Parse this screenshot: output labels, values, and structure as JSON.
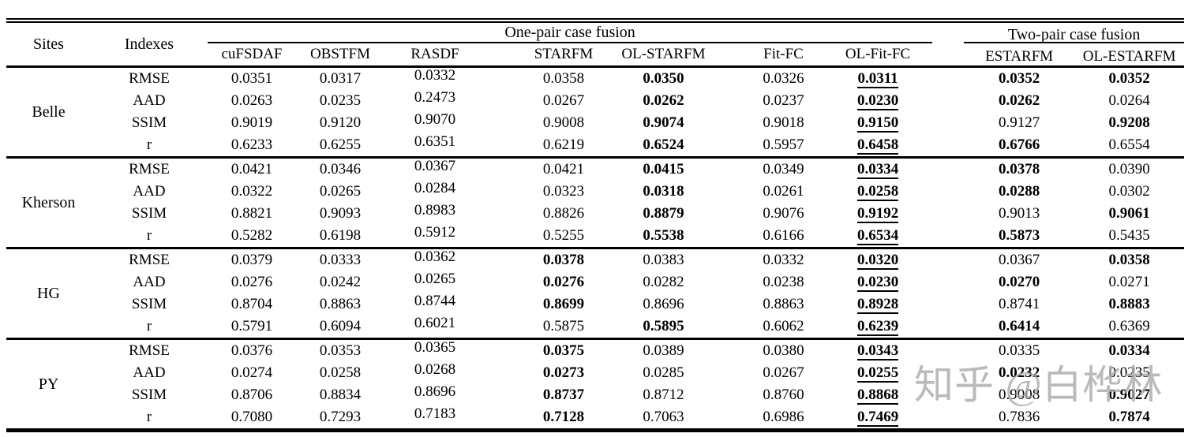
{
  "watermark": {
    "text": "知乎 @白桦林"
  },
  "table": {
    "col_headers": {
      "sites": "Sites",
      "indexes": "Indexes",
      "group_one": "One-pair case fusion",
      "group_two": "Two-pair case fusion",
      "methods_one": [
        "cuFSDAF",
        "OBSTFM",
        "RASDF",
        "STARFM",
        "OL-STARFM",
        "Fit-FC",
        "OL-Fit-FC"
      ],
      "methods_two": [
        "ESTARFM",
        "OL-ESTARFM"
      ]
    },
    "sites": [
      {
        "name": "Belle",
        "rows": [
          {
            "index": "RMSE",
            "values": [
              {
                "v": "0.0351"
              },
              {
                "v": "0.0317"
              },
              {
                "v": "0.0332"
              },
              {
                "v": "0.0358"
              },
              {
                "v": "0.0350",
                "b": true
              },
              {
                "v": "0.0326"
              },
              {
                "v": "0.0311",
                "b": true,
                "u": true
              },
              {
                "v": "0.0352",
                "b": true
              },
              {
                "v": "0.0352",
                "b": true
              }
            ]
          },
          {
            "index": "AAD",
            "values": [
              {
                "v": "0.0263"
              },
              {
                "v": "0.0235"
              },
              {
                "v": "0.2473"
              },
              {
                "v": "0.0267"
              },
              {
                "v": "0.0262",
                "b": true
              },
              {
                "v": "0.0237"
              },
              {
                "v": "0.0230",
                "b": true,
                "u": true
              },
              {
                "v": "0.0262",
                "b": true
              },
              {
                "v": "0.0264"
              }
            ]
          },
          {
            "index": "SSIM",
            "values": [
              {
                "v": "0.9019"
              },
              {
                "v": "0.9120"
              },
              {
                "v": "0.9070"
              },
              {
                "v": "0.9008"
              },
              {
                "v": "0.9074",
                "b": true
              },
              {
                "v": "0.9018"
              },
              {
                "v": "0.9150",
                "b": true,
                "u": true
              },
              {
                "v": "0.9127"
              },
              {
                "v": "0.9208",
                "b": true
              }
            ]
          },
          {
            "index": "r",
            "values": [
              {
                "v": "0.6233"
              },
              {
                "v": "0.6255"
              },
              {
                "v": "0.6351"
              },
              {
                "v": "0.6219"
              },
              {
                "v": "0.6524",
                "b": true
              },
              {
                "v": "0.5957"
              },
              {
                "v": "0.6458",
                "b": true,
                "u": true
              },
              {
                "v": "0.6766",
                "b": true
              },
              {
                "v": "0.6554"
              }
            ]
          }
        ]
      },
      {
        "name": "Kherson",
        "rows": [
          {
            "index": "RMSE",
            "values": [
              {
                "v": "0.0421"
              },
              {
                "v": "0.0346"
              },
              {
                "v": "0.0367"
              },
              {
                "v": "0.0421"
              },
              {
                "v": "0.0415",
                "b": true
              },
              {
                "v": "0.0349"
              },
              {
                "v": "0.0334",
                "b": true,
                "u": true
              },
              {
                "v": "0.0378",
                "b": true
              },
              {
                "v": "0.0390"
              }
            ]
          },
          {
            "index": "AAD",
            "values": [
              {
                "v": "0.0322"
              },
              {
                "v": "0.0265"
              },
              {
                "v": "0.0284"
              },
              {
                "v": "0.0323"
              },
              {
                "v": "0.0318",
                "b": true
              },
              {
                "v": "0.0261"
              },
              {
                "v": "0.0258",
                "b": true,
                "u": true
              },
              {
                "v": "0.0288",
                "b": true
              },
              {
                "v": "0.0302"
              }
            ]
          },
          {
            "index": "SSIM",
            "values": [
              {
                "v": "0.8821"
              },
              {
                "v": "0.9093"
              },
              {
                "v": "0.8983"
              },
              {
                "v": "0.8826"
              },
              {
                "v": "0.8879",
                "b": true
              },
              {
                "v": "0.9076"
              },
              {
                "v": "0.9192",
                "b": true,
                "u": true
              },
              {
                "v": "0.9013"
              },
              {
                "v": "0.9061",
                "b": true
              }
            ]
          },
          {
            "index": "r",
            "values": [
              {
                "v": "0.5282"
              },
              {
                "v": "0.6198"
              },
              {
                "v": "0.5912"
              },
              {
                "v": "0.5255"
              },
              {
                "v": "0.5538",
                "b": true
              },
              {
                "v": "0.6166"
              },
              {
                "v": "0.6534",
                "b": true,
                "u": true
              },
              {
                "v": "0.5873",
                "b": true
              },
              {
                "v": "0.5435"
              }
            ]
          }
        ]
      },
      {
        "name": "HG",
        "rows": [
          {
            "index": "RMSE",
            "values": [
              {
                "v": "0.0379"
              },
              {
                "v": "0.0333"
              },
              {
                "v": "0.0362"
              },
              {
                "v": "0.0378",
                "b": true
              },
              {
                "v": "0.0383"
              },
              {
                "v": "0.0332"
              },
              {
                "v": "0.0320",
                "b": true,
                "u": true
              },
              {
                "v": "0.0367"
              },
              {
                "v": "0.0358",
                "b": true
              }
            ]
          },
          {
            "index": "AAD",
            "values": [
              {
                "v": "0.0276"
              },
              {
                "v": "0.0242"
              },
              {
                "v": "0.0265"
              },
              {
                "v": "0.0276",
                "b": true
              },
              {
                "v": "0.0282"
              },
              {
                "v": "0.0238"
              },
              {
                "v": "0.0230",
                "b": true,
                "u": true
              },
              {
                "v": "0.0270",
                "b": true
              },
              {
                "v": "0.0271"
              }
            ]
          },
          {
            "index": "SSIM",
            "values": [
              {
                "v": "0.8704"
              },
              {
                "v": "0.8863"
              },
              {
                "v": "0.8744"
              },
              {
                "v": "0.8699",
                "b": true
              },
              {
                "v": "0.8696"
              },
              {
                "v": "0.8863"
              },
              {
                "v": "0.8928",
                "b": true,
                "u": true
              },
              {
                "v": "0.8741"
              },
              {
                "v": "0.8883",
                "b": true
              }
            ]
          },
          {
            "index": "r",
            "values": [
              {
                "v": "0.5791"
              },
              {
                "v": "0.6094"
              },
              {
                "v": "0.6021"
              },
              {
                "v": "0.5875"
              },
              {
                "v": "0.5895",
                "b": true
              },
              {
                "v": "0.6062"
              },
              {
                "v": "0.6239",
                "b": true,
                "u": true
              },
              {
                "v": "0.6414",
                "b": true
              },
              {
                "v": "0.6369"
              }
            ]
          }
        ]
      },
      {
        "name": "PY",
        "rows": [
          {
            "index": "RMSE",
            "values": [
              {
                "v": "0.0376"
              },
              {
                "v": "0.0353"
              },
              {
                "v": "0.0365"
              },
              {
                "v": "0.0375",
                "b": true
              },
              {
                "v": "0.0389"
              },
              {
                "v": "0.0380"
              },
              {
                "v": "0.0343",
                "b": true,
                "u": true
              },
              {
                "v": "0.0335"
              },
              {
                "v": "0.0334",
                "b": true
              }
            ]
          },
          {
            "index": "AAD",
            "values": [
              {
                "v": "0.0274"
              },
              {
                "v": "0.0258"
              },
              {
                "v": "0.0268"
              },
              {
                "v": "0.0273",
                "b": true
              },
              {
                "v": "0.0285"
              },
              {
                "v": "0.0267"
              },
              {
                "v": "0.0255",
                "b": true,
                "u": true
              },
              {
                "v": "0.0232",
                "b": true
              },
              {
                "v": "0.0235"
              }
            ]
          },
          {
            "index": "SSIM",
            "values": [
              {
                "v": "0.8706"
              },
              {
                "v": "0.8834"
              },
              {
                "v": "0.8696"
              },
              {
                "v": "0.8737",
                "b": true
              },
              {
                "v": "0.8712"
              },
              {
                "v": "0.8760"
              },
              {
                "v": "0.8868",
                "b": true,
                "u": true
              },
              {
                "v": "0.9008"
              },
              {
                "v": "0.9027",
                "b": true
              }
            ]
          },
          {
            "index": "r",
            "values": [
              {
                "v": "0.7080"
              },
              {
                "v": "0.7293"
              },
              {
                "v": "0.7183"
              },
              {
                "v": "0.7128",
                "b": true
              },
              {
                "v": "0.7063"
              },
              {
                "v": "0.6986"
              },
              {
                "v": "0.7469",
                "b": true,
                "u": true
              },
              {
                "v": "0.7836"
              },
              {
                "v": "0.7874",
                "b": true
              }
            ]
          }
        ]
      }
    ]
  }
}
